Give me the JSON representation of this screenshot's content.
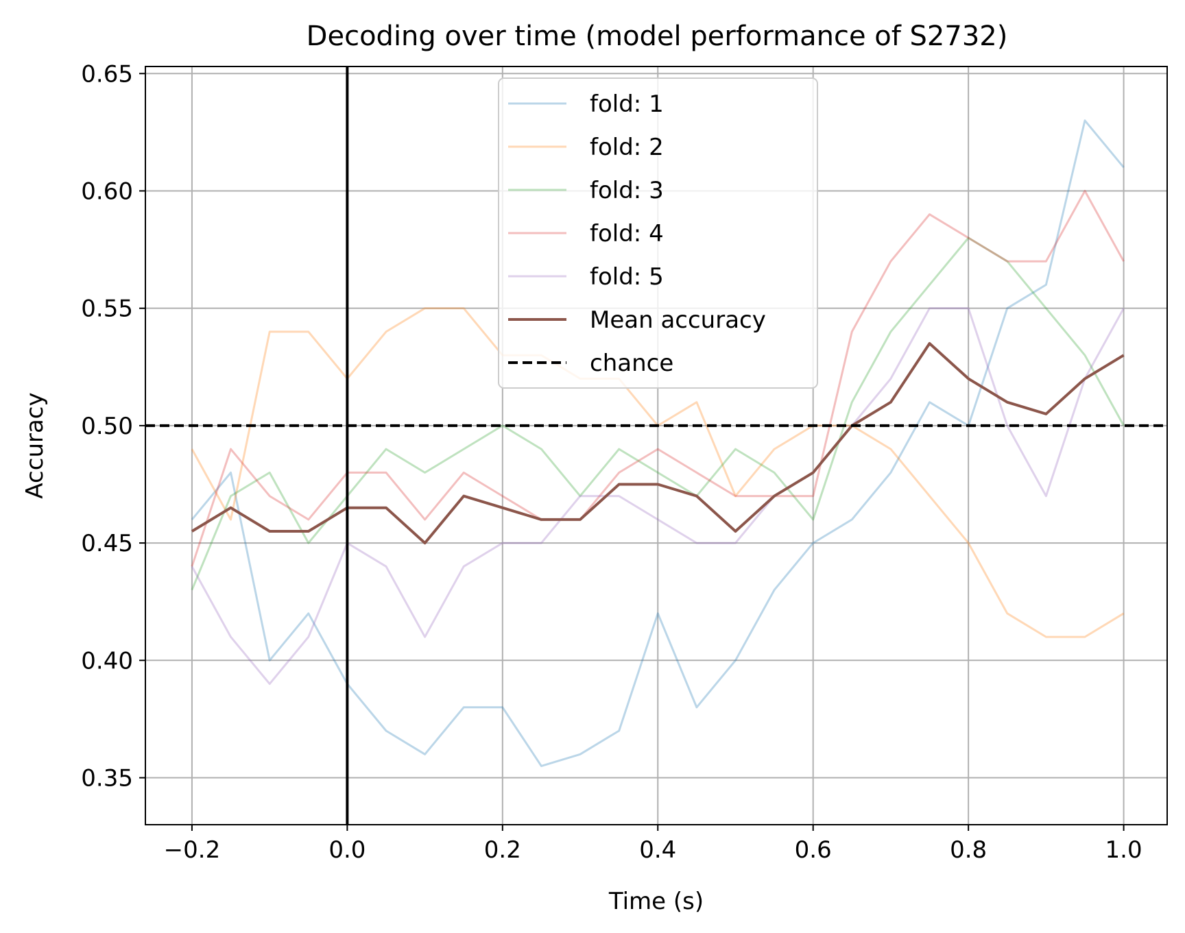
{
  "chart_data": {
    "type": "line",
    "title": "Decoding over time (model performance of S2732)",
    "xlabel": "Time (s)",
    "ylabel": "Accuracy",
    "xlim": [
      -0.26,
      1.056
    ],
    "ylim": [
      0.33,
      0.653
    ],
    "xticks": [
      -0.2,
      0.0,
      0.2,
      0.4,
      0.6,
      0.8,
      1.0
    ],
    "xtick_labels": [
      "−0.2",
      "0.0",
      "0.2",
      "0.4",
      "0.6",
      "0.8",
      "1.0"
    ],
    "yticks": [
      0.35,
      0.4,
      0.45,
      0.5,
      0.55,
      0.6,
      0.65
    ],
    "ytick_labels": [
      "0.35",
      "0.40",
      "0.45",
      "0.50",
      "0.55",
      "0.60",
      "0.65"
    ],
    "grid": true,
    "legend_position": "upper-center",
    "x": [
      -0.2,
      -0.15,
      -0.1,
      -0.05,
      0.0,
      0.05,
      0.1,
      0.15,
      0.2,
      0.25,
      0.3,
      0.35,
      0.4,
      0.45,
      0.5,
      0.55,
      0.6,
      0.65,
      0.7,
      0.75,
      0.8,
      0.85,
      0.9,
      0.95,
      1.0
    ],
    "series": [
      {
        "name": "fold: 1",
        "color": "#1f77b4",
        "alpha": 0.3,
        "linestyle": "solid",
        "values": [
          0.46,
          0.48,
          0.4,
          0.42,
          0.39,
          0.37,
          0.36,
          0.38,
          0.38,
          0.355,
          0.36,
          0.37,
          0.42,
          0.38,
          0.4,
          0.43,
          0.45,
          0.46,
          0.48,
          0.51,
          0.5,
          0.55,
          0.56,
          0.63,
          0.61
        ]
      },
      {
        "name": "fold: 2",
        "color": "#ff7f0e",
        "alpha": 0.3,
        "linestyle": "solid",
        "values": [
          0.49,
          0.46,
          0.54,
          0.54,
          0.52,
          0.54,
          0.55,
          0.55,
          0.53,
          0.53,
          0.52,
          0.52,
          0.5,
          0.51,
          0.47,
          0.49,
          0.5,
          0.5,
          0.49,
          0.47,
          0.45,
          0.42,
          0.41,
          0.41,
          0.42
        ]
      },
      {
        "name": "fold: 3",
        "color": "#2ca02c",
        "alpha": 0.3,
        "linestyle": "solid",
        "values": [
          0.43,
          0.47,
          0.48,
          0.45,
          0.47,
          0.49,
          0.48,
          0.49,
          0.5,
          0.49,
          0.47,
          0.49,
          0.48,
          0.47,
          0.49,
          0.48,
          0.46,
          0.51,
          0.54,
          0.56,
          0.58,
          0.57,
          0.55,
          0.53,
          0.5
        ]
      },
      {
        "name": "fold: 4",
        "color": "#d62728",
        "alpha": 0.3,
        "linestyle": "solid",
        "values": [
          0.44,
          0.49,
          0.47,
          0.46,
          0.48,
          0.48,
          0.46,
          0.48,
          0.47,
          0.46,
          0.46,
          0.48,
          0.49,
          0.48,
          0.47,
          0.47,
          0.47,
          0.54,
          0.57,
          0.59,
          0.58,
          0.57,
          0.57,
          0.6,
          0.57
        ]
      },
      {
        "name": "fold: 5",
        "color": "#9467bd",
        "alpha": 0.3,
        "linestyle": "solid",
        "values": [
          0.44,
          0.41,
          0.39,
          0.41,
          0.45,
          0.44,
          0.41,
          0.44,
          0.45,
          0.45,
          0.47,
          0.47,
          0.46,
          0.45,
          0.45,
          0.47,
          0.48,
          0.5,
          0.52,
          0.55,
          0.55,
          0.5,
          0.47,
          0.52,
          0.55
        ]
      },
      {
        "name": "Mean accuracy",
        "color": "#8c564b",
        "alpha": 1.0,
        "linestyle": "solid",
        "values": [
          0.455,
          0.465,
          0.455,
          0.455,
          0.465,
          0.465,
          0.45,
          0.47,
          0.465,
          0.46,
          0.46,
          0.475,
          0.475,
          0.47,
          0.455,
          0.47,
          0.48,
          0.5,
          0.51,
          0.535,
          0.52,
          0.51,
          0.505,
          0.52,
          0.53
        ]
      }
    ],
    "reference_lines": [
      {
        "name": "chance",
        "orientation": "horizontal",
        "value": 0.5,
        "color": "#000000",
        "linestyle": "dashed",
        "in_legend": true
      },
      {
        "name": "onset",
        "orientation": "vertical",
        "value": 0.0,
        "color": "#000000",
        "linestyle": "solid",
        "in_legend": false
      }
    ]
  }
}
